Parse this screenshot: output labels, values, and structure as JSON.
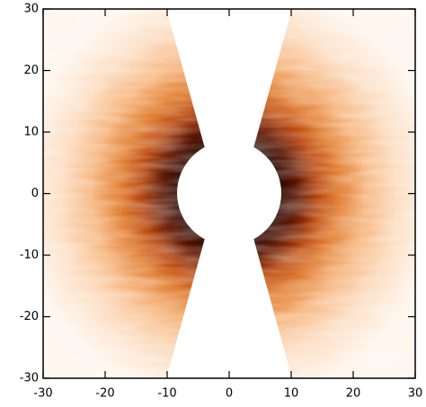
{
  "chart_data": {
    "type": "image",
    "xlim": [
      -30,
      30
    ],
    "ylim": [
      -30,
      30
    ],
    "xticks": [
      -30,
      -20,
      -10,
      0,
      10,
      20,
      30
    ],
    "yticks": [
      -30,
      -20,
      -10,
      0,
      10,
      20,
      30
    ]
  }
}
